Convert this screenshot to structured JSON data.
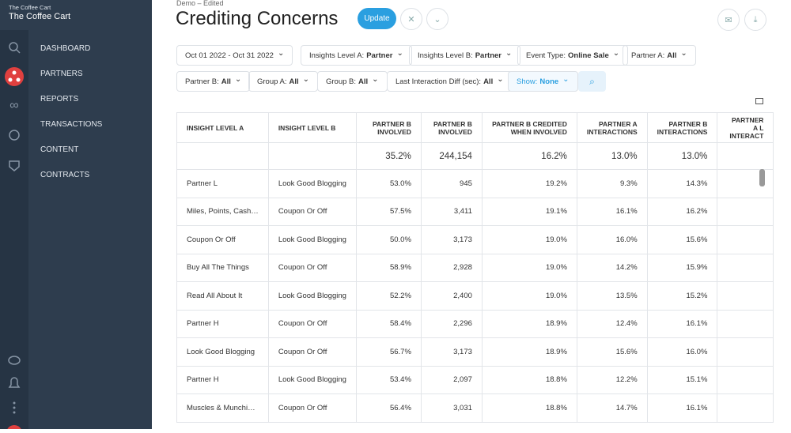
{
  "sidebar": {
    "org_small": "The Coffee Cart",
    "org": "The Coffee Cart",
    "nav": [
      "DASHBOARD",
      "PARTNERS",
      "REPORTS",
      "TRANSACTIONS",
      "CONTENT",
      "CONTRACTS"
    ]
  },
  "header": {
    "breadcrumb": "Demo – Edited",
    "title": "Crediting Concerns",
    "update": "Update"
  },
  "filters": {
    "date": "Oct 01 2022 - Oct 31 2022",
    "items": [
      {
        "label": "Insights Level A:",
        "value": "Partner"
      },
      {
        "label": "Insights Level B:",
        "value": "Partner"
      },
      {
        "label": "Event Type:",
        "value": "Online Sale"
      },
      {
        "label": "Partner A:",
        "value": "All"
      },
      {
        "label": "Partner B:",
        "value": "All"
      },
      {
        "label": "Group A:",
        "value": "All"
      },
      {
        "label": "Group B:",
        "value": "All"
      },
      {
        "label": "Last Interaction Diff (sec):",
        "value": "All"
      },
      {
        "label": "Show:",
        "value": "None"
      }
    ]
  },
  "table": {
    "columns": [
      "INSIGHT LEVEL A",
      "INSIGHT LEVEL B",
      "PARTNER B INVOLVED",
      "PARTNER B INVOLVED",
      "PARTNER B CREDITED WHEN INVOLVED",
      "PARTNER A INTERACTIONS",
      "PARTNER B INTERACTIONS",
      "PARTNER A L INTERACT"
    ],
    "summary": [
      "35.2%",
      "244,154",
      "16.2%",
      "13.0%",
      "13.0%"
    ],
    "rows": [
      [
        "Partner L",
        "Look Good Blogging",
        "53.0%",
        "945",
        "19.2%",
        "9.3%",
        "14.3%"
      ],
      [
        "Miles, Points, Cash…",
        "Coupon Or Off",
        "57.5%",
        "3,411",
        "19.1%",
        "16.1%",
        "16.2%"
      ],
      [
        "Coupon Or Off",
        "Look Good Blogging",
        "50.0%",
        "3,173",
        "19.0%",
        "16.0%",
        "15.6%"
      ],
      [
        "Buy All The Things",
        "Coupon Or Off",
        "58.9%",
        "2,928",
        "19.0%",
        "14.2%",
        "15.9%"
      ],
      [
        "Read All About It",
        "Look Good Blogging",
        "52.2%",
        "2,400",
        "19.0%",
        "13.5%",
        "15.2%"
      ],
      [
        "Partner H",
        "Coupon Or Off",
        "58.4%",
        "2,296",
        "18.9%",
        "12.4%",
        "16.1%"
      ],
      [
        "Look Good Blogging",
        "Coupon Or Off",
        "56.7%",
        "3,173",
        "18.9%",
        "15.6%",
        "16.0%"
      ],
      [
        "Partner H",
        "Look Good Blogging",
        "53.4%",
        "2,097",
        "18.8%",
        "12.2%",
        "15.1%"
      ],
      [
        "Muscles & Munchi…",
        "Coupon Or Off",
        "56.4%",
        "3,031",
        "18.8%",
        "14.7%",
        "16.1%"
      ]
    ]
  }
}
